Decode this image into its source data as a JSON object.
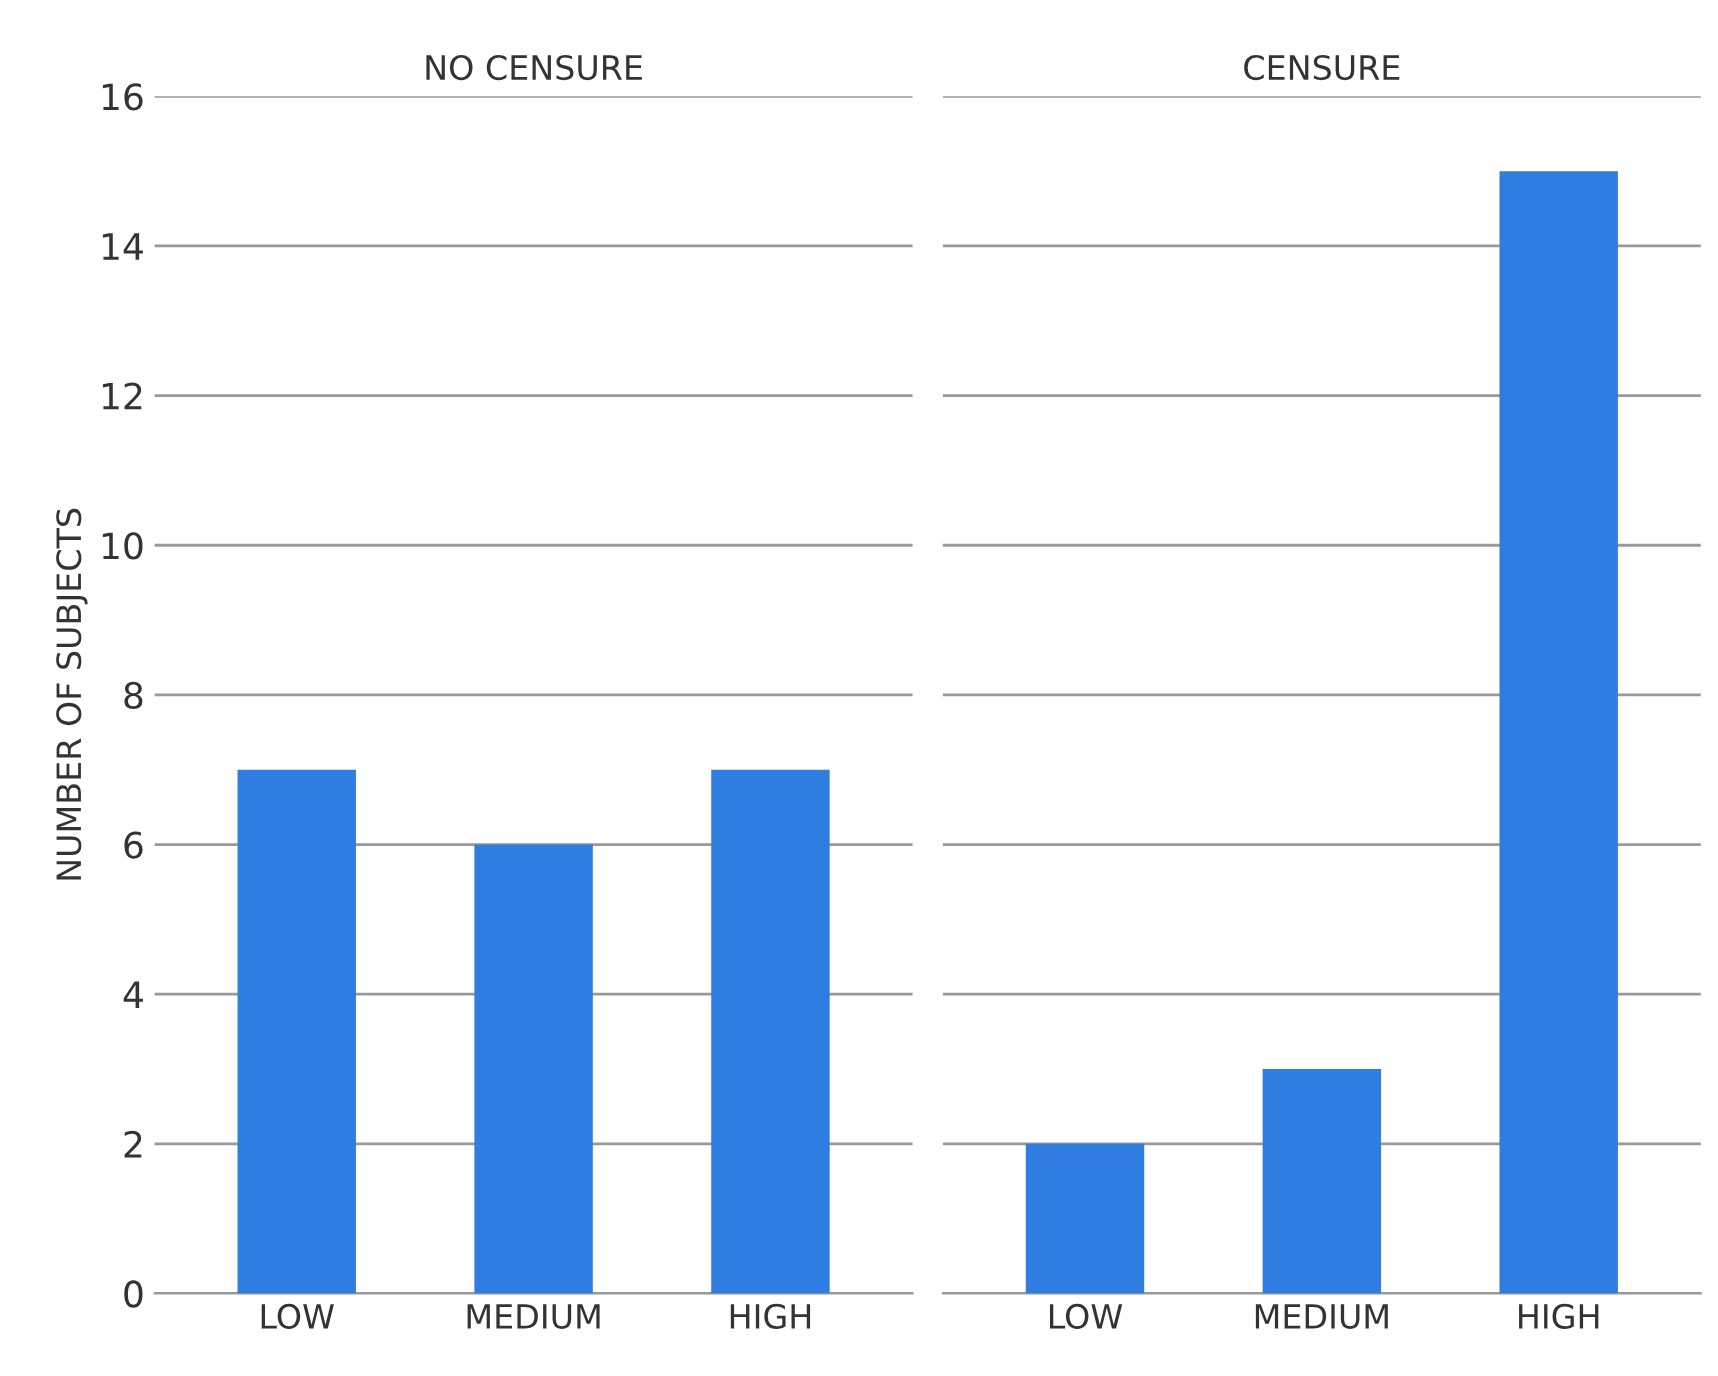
{
  "chart_data": [
    {
      "type": "bar",
      "title": "NO CENSURE",
      "ylabel": "NUMBER OF SUBJECTS",
      "categories": [
        "LOW",
        "MEDIUM",
        "HIGH"
      ],
      "values": [
        7,
        6,
        7
      ],
      "color": "#2f7de1",
      "ylim": [
        0,
        16
      ],
      "yticks": [
        0,
        2,
        4,
        6,
        8,
        10,
        12,
        14,
        16
      ],
      "grid": "y"
    },
    {
      "type": "bar",
      "title": "CENSURE",
      "categories": [
        "LOW",
        "MEDIUM",
        "HIGH"
      ],
      "values": [
        2,
        3,
        15
      ],
      "color": "#2f7de1",
      "ylim": [
        0,
        16
      ],
      "yticks": [
        0,
        2,
        4,
        6,
        8,
        10,
        12,
        14,
        16
      ],
      "grid": "y",
      "tick_labels": "x"
    }
  ]
}
